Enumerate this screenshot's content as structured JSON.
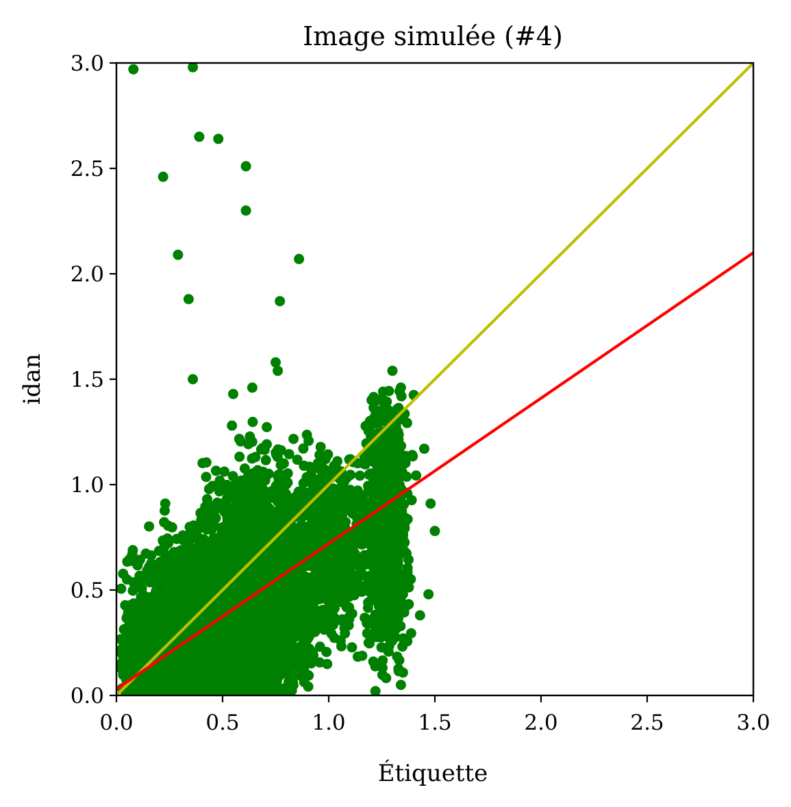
{
  "chart_data": {
    "type": "scatter",
    "title": "Image simulée (#4)",
    "xlabel": "Étiquette",
    "ylabel": "idan",
    "xlim": [
      0.0,
      3.0
    ],
    "ylim": [
      0.0,
      3.0
    ],
    "xticks": [
      "0.0",
      "0.5",
      "1.0",
      "1.5",
      "2.0",
      "2.5",
      "3.0"
    ],
    "yticks": [
      "0.0",
      "0.5",
      "1.0",
      "1.5",
      "2.0",
      "2.5",
      "3.0"
    ],
    "grid": false,
    "colors": {
      "points": "#008000",
      "identity_line": "#bfbf00",
      "fit_line": "#ff0000"
    },
    "lines": [
      {
        "kind": "identity",
        "color": "#bfbf00",
        "x": [
          0.0,
          3.0
        ],
        "y": [
          0.0,
          3.0
        ]
      },
      {
        "kind": "fit",
        "color": "#ff0000",
        "x": [
          0.0,
          3.0
        ],
        "y": [
          0.03,
          2.1
        ]
      }
    ],
    "outliers": [
      [
        0.08,
        2.97
      ],
      [
        0.36,
        2.98
      ],
      [
        0.39,
        2.65
      ],
      [
        0.48,
        2.64
      ],
      [
        0.22,
        2.46
      ],
      [
        0.61,
        2.51
      ],
      [
        0.61,
        2.3
      ],
      [
        0.29,
        2.09
      ],
      [
        0.86,
        2.07
      ],
      [
        0.34,
        1.88
      ],
      [
        0.77,
        1.87
      ],
      [
        0.36,
        1.5
      ],
      [
        0.75,
        1.58
      ],
      [
        0.76,
        1.54
      ],
      [
        0.23,
        0.91
      ],
      [
        1.3,
        1.54
      ],
      [
        1.34,
        1.46
      ],
      [
        0.64,
        1.46
      ],
      [
        0.55,
        1.43
      ],
      [
        1.45,
        1.17
      ],
      [
        1.48,
        0.91
      ],
      [
        1.5,
        0.78
      ],
      [
        1.47,
        0.48
      ],
      [
        1.43,
        0.38
      ],
      [
        1.22,
        0.02
      ],
      [
        1.34,
        0.05
      ],
      [
        0.07,
        0.43
      ]
    ],
    "clusters": [
      {
        "cx": 0.42,
        "cy": 0.3,
        "sx": 0.17,
        "sy": 0.21,
        "n": 2600,
        "xmin": 0.02,
        "xmax": 0.85,
        "ymin": 0.0,
        "ymax": 1.05
      },
      {
        "cx": 0.66,
        "cy": 0.5,
        "sx": 0.13,
        "sy": 0.26,
        "n": 2400,
        "xmin": 0.35,
        "xmax": 1.0,
        "ymin": 0.0,
        "ymax": 1.35
      },
      {
        "cx": 0.2,
        "cy": 0.15,
        "sx": 0.09,
        "sy": 0.1,
        "n": 900,
        "xmin": 0.02,
        "xmax": 0.45,
        "ymin": 0.0,
        "ymax": 0.55
      },
      {
        "cx": 1.02,
        "cy": 0.72,
        "sx": 0.07,
        "sy": 0.22,
        "n": 550,
        "xmin": 0.85,
        "xmax": 1.18,
        "ymin": 0.15,
        "ymax": 1.25
      },
      {
        "cx": 1.27,
        "cy": 0.85,
        "sx": 0.05,
        "sy": 0.33,
        "n": 900,
        "xmin": 1.13,
        "xmax": 1.42,
        "ymin": 0.05,
        "ymax": 1.45
      }
    ]
  }
}
